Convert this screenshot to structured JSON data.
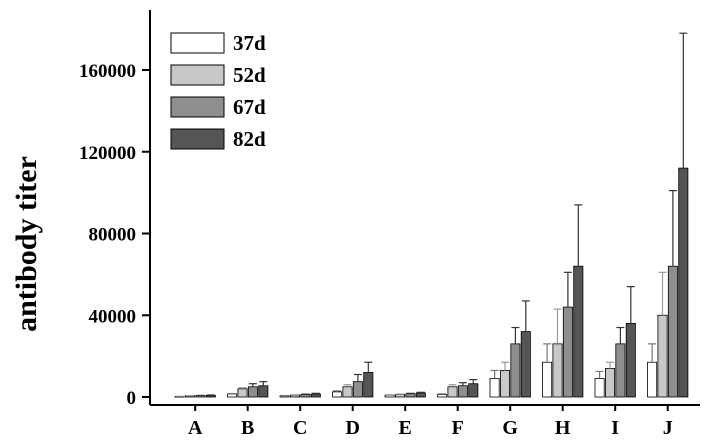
{
  "chart_data": {
    "type": "bar",
    "title": "",
    "xlabel": "",
    "ylabel": "antibody titer",
    "ylim": [
      0,
      180000
    ],
    "yticks": [
      0,
      40000,
      80000,
      120000,
      160000
    ],
    "ytick_labels": [
      "0",
      "40000",
      "80000",
      "120000",
      "160000"
    ],
    "categories": [
      "A",
      "B",
      "C",
      "D",
      "E",
      "F",
      "G",
      "H",
      "I",
      "J"
    ],
    "legend_position": "top-left",
    "grid": false,
    "series": [
      {
        "name": "37d",
        "color": "#ffffff",
        "values": [
          200,
          1500,
          600,
          2500,
          900,
          1200,
          9000,
          17000,
          9000,
          17000
        ],
        "errors": [
          100,
          200,
          100,
          500,
          100,
          300,
          4000,
          9000,
          3500,
          9000
        ]
      },
      {
        "name": "52d",
        "color": "#c8c8c8",
        "values": [
          600,
          4000,
          900,
          5000,
          1200,
          5000,
          13000,
          26000,
          14000,
          40000
        ],
        "errors": [
          100,
          500,
          200,
          1000,
          200,
          1000,
          4000,
          17000,
          3000,
          21000
        ]
      },
      {
        "name": "67d",
        "color": "#8e8e8e",
        "values": [
          700,
          5000,
          1200,
          7500,
          1600,
          5500,
          26000,
          44000,
          26000,
          64000
        ],
        "errors": [
          100,
          1500,
          200,
          3500,
          200,
          1500,
          8000,
          17000,
          8000,
          37000
        ]
      },
      {
        "name": "82d",
        "color": "#555555",
        "values": [
          800,
          5500,
          1500,
          12000,
          2000,
          6500,
          32000,
          64000,
          36000,
          112000
        ],
        "errors": [
          200,
          2000,
          300,
          5000,
          300,
          2000,
          15000,
          30000,
          18000,
          66000
        ]
      }
    ]
  }
}
